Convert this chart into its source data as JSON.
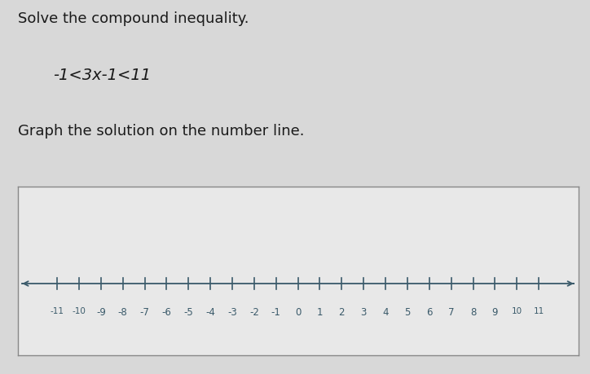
{
  "title_line1": "Solve the compound inequality.",
  "inequality": "-1<3x-1<11",
  "subtitle": "Graph the solution on the number line.",
  "x_min": -11,
  "x_max": 11,
  "background_color": "#d8d8d8",
  "box_background": "#e8e8e8",
  "text_color": "#1a1a1a",
  "axis_color": "#3a5a6a",
  "label_color": "#3a5a6a",
  "title_fontsize": 13,
  "inequality_fontsize": 14,
  "subtitle_fontsize": 13
}
